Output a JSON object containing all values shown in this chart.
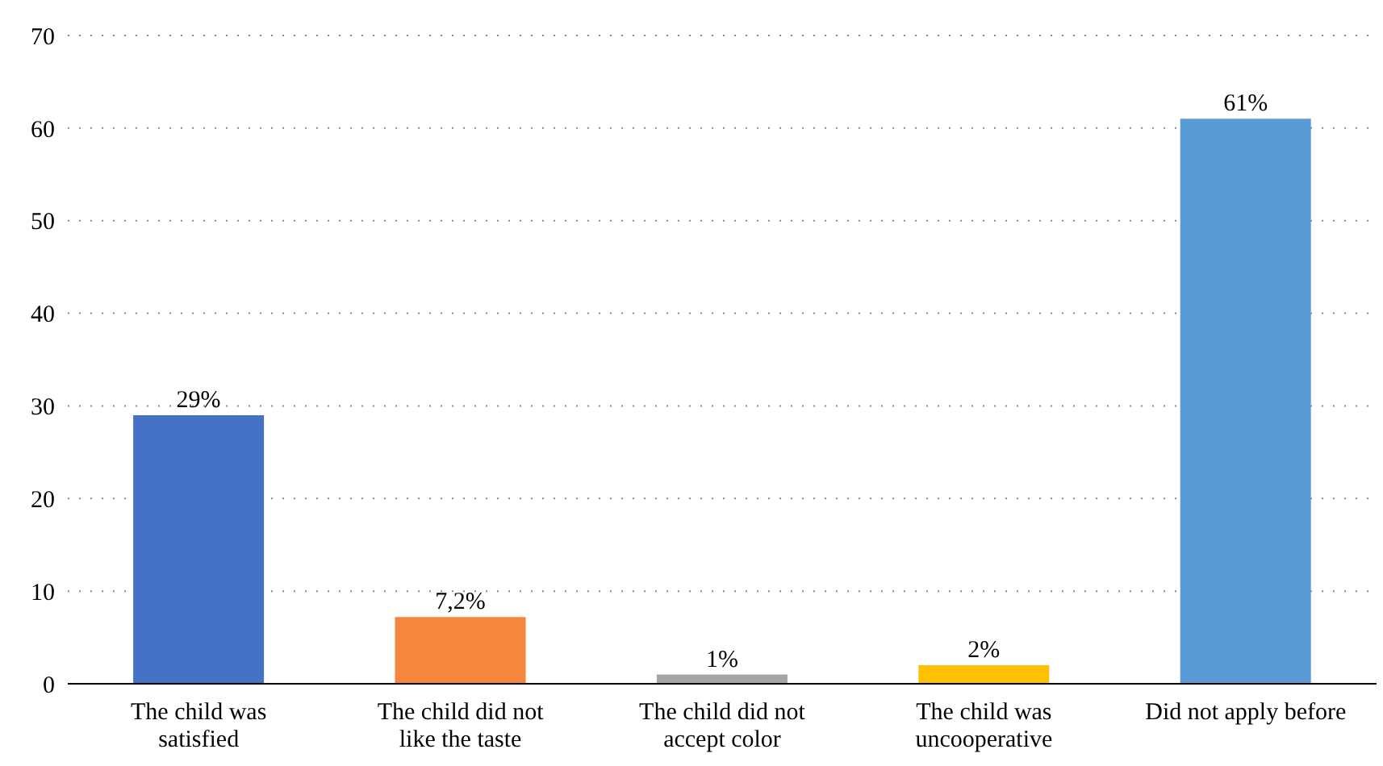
{
  "chart_data": {
    "type": "bar",
    "categories": [
      "The child was satisfied",
      "The child did not like the taste",
      "The child did not accept color",
      "The child was uncooperative",
      "Did not apply before"
    ],
    "values": [
      29,
      7.2,
      1,
      2,
      61
    ],
    "colors": [
      "#4472c4",
      "#f4863e",
      "#a5a5a5",
      "#ffc000",
      "#5b9bd5"
    ],
    "value_labels": [
      "29%",
      "7,2%",
      "1%",
      "2%",
      "61%"
    ],
    "ylim": [
      0,
      70
    ],
    "yticks": [
      0,
      10,
      20,
      30,
      40,
      50,
      60,
      70
    ],
    "grid": "y"
  }
}
